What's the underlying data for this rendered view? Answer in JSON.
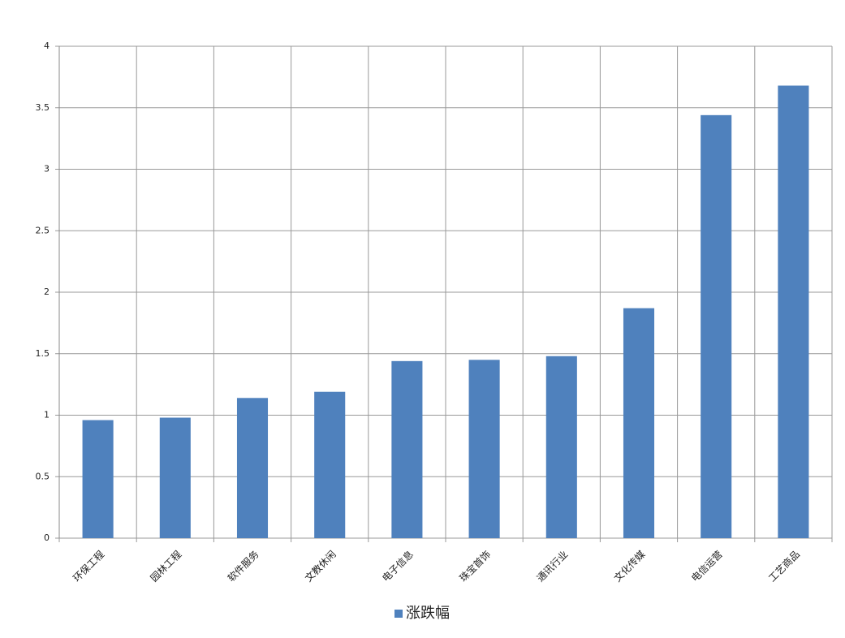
{
  "chart_data": {
    "type": "bar",
    "categories": [
      "环保工程",
      "园林工程",
      "软件服务",
      "文教休闲",
      "电子信息",
      "珠宝首饰",
      "通讯行业",
      "文化传媒",
      "电信运营",
      "工艺商品"
    ],
    "series": [
      {
        "name": "涨跌幅",
        "color": "#4f81bd",
        "values": [
          0.96,
          0.98,
          1.14,
          1.19,
          1.44,
          1.45,
          1.48,
          1.87,
          3.44,
          3.68
        ]
      }
    ],
    "ylim": [
      0,
      4
    ],
    "yticks": [
      0,
      0.5,
      1,
      1.5,
      2,
      2.5,
      3,
      3.5,
      4
    ],
    "grid": true,
    "legend": "bottom"
  }
}
